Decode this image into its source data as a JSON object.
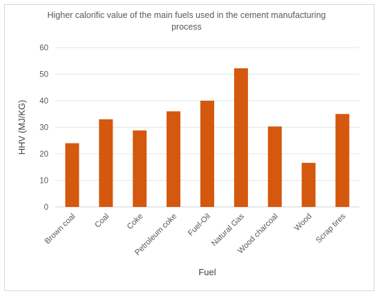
{
  "chart_data": {
    "type": "bar",
    "title": "Higher calorific value of the main fuels used in the cement manufacturing process",
    "xlabel": "Fuel",
    "ylabel": "HHV (MJ/KG)",
    "ylim": [
      0,
      60
    ],
    "yticks": [
      0,
      10,
      20,
      30,
      40,
      50,
      60
    ],
    "grid": true,
    "legend": "none",
    "bar_color": "#D4580E",
    "categories": [
      "Brown coal",
      "Coal",
      "Coke",
      "Petroleum coke",
      "Fuel-Oil",
      "Natural Gas",
      "Wood charcoal",
      "Wood",
      "Scrap tires"
    ],
    "values": [
      24,
      33,
      28.8,
      36,
      40,
      52.2,
      30.3,
      16.6,
      35
    ]
  }
}
